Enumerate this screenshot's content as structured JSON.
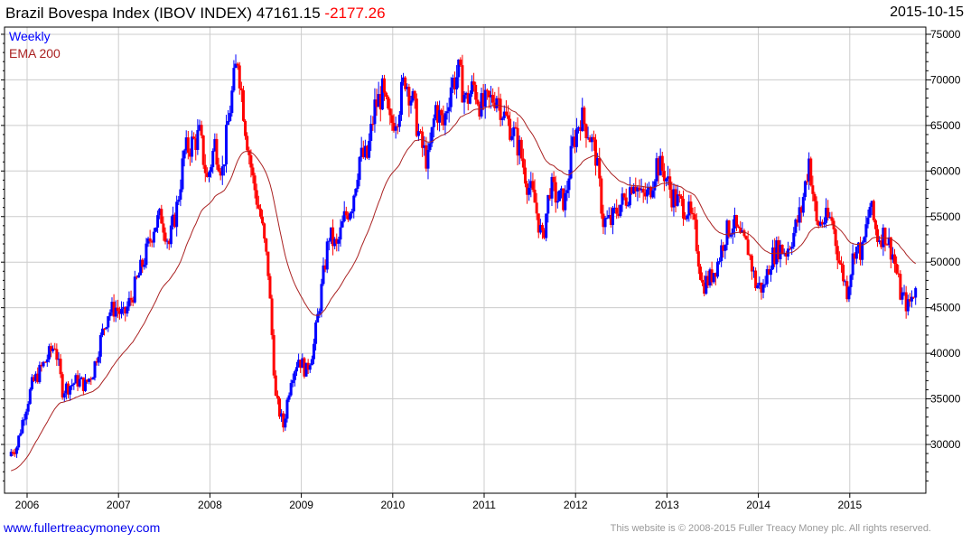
{
  "header": {
    "title": "Brazil Bovespa Index (IBOV INDEX) 47161.15",
    "change": "-2177.26",
    "date": "2015-10-15"
  },
  "footer": {
    "url": "www.fullertreacymoney.com",
    "copyright": "This website is © 2008-2015 Fuller Treacy Money plc. All rights reserved."
  },
  "colors": {
    "up": "#0000ff",
    "down": "#ff0000",
    "ema": "#aa2222",
    "grid": "#cccccc"
  },
  "chart_data": {
    "type": "ohlc-bar",
    "frequency_label": "Weekly",
    "legend": [
      "Weekly",
      "EMA 200"
    ],
    "legend_placement": "top-left",
    "ylim": [
      25000,
      76000
    ],
    "yticks": [
      30000,
      35000,
      40000,
      45000,
      50000,
      55000,
      60000,
      65000,
      70000,
      75000
    ],
    "xticks": [
      "2006",
      "2007",
      "2008",
      "2009",
      "2010",
      "2011",
      "2012",
      "2013",
      "2014",
      "2015"
    ],
    "grid": true,
    "start_month": "2005-11",
    "monthly_close": [
      29000,
      29800,
      33500,
      36500,
      38000,
      39500,
      41000,
      36000,
      36500,
      37000,
      36500,
      38000,
      41500,
      44500,
      45000,
      44000,
      46000,
      48500,
      51000,
      54000,
      55000,
      52000,
      56000,
      62000,
      63000,
      63900,
      59000,
      63000,
      60000,
      67000,
      72500,
      65000,
      59000,
      55000,
      49000,
      35000,
      32000,
      37500,
      39500,
      38000,
      40900,
      47000,
      53000,
      51500,
      54800,
      56500,
      61500,
      61500,
      67000,
      68500,
      65000,
      66500,
      70300,
      67500,
      63000,
      61000,
      67000,
      65000,
      69500,
      70700,
      67700,
      69300,
      67000,
      67500,
      68500,
      66000,
      64600,
      62400,
      58800,
      56500,
      52300,
      58300,
      56900,
      56800,
      63000,
      66000,
      64500,
      61800,
      54500,
      54400,
      56100,
      57100,
      59200,
      57100,
      57500,
      60900,
      59800,
      57400,
      56400,
      55900,
      53500,
      47500,
      48200,
      50000,
      53000,
      54300,
      52500,
      51500,
      47600,
      47100,
      50400,
      51600,
      51200,
      53200,
      55800,
      61300,
      54100,
      54600,
      54700,
      50000,
      46900,
      51600,
      51100,
      56200,
      52800,
      53100,
      50900,
      46600,
      45100,
      47161
    ],
    "ema_seed": 27000
  }
}
